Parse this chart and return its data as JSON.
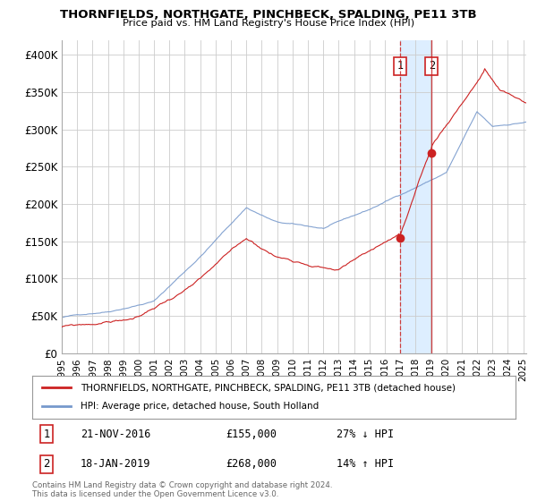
{
  "title": "THORNFIELDS, NORTHGATE, PINCHBECK, SPALDING, PE11 3TB",
  "subtitle": "Price paid vs. HM Land Registry's House Price Index (HPI)",
  "legend_line1": "THORNFIELDS, NORTHGATE, PINCHBECK, SPALDING, PE11 3TB (detached house)",
  "legend_line2": "HPI: Average price, detached house, South Holland",
  "annotation1_date": "21-NOV-2016",
  "annotation1_price": "£155,000",
  "annotation1_hpi": "27% ↓ HPI",
  "annotation1_year": 2017.0,
  "annotation1_value": 155000,
  "annotation2_date": "18-JAN-2019",
  "annotation2_price": "£268,000",
  "annotation2_hpi": "14% ↑ HPI",
  "annotation2_year": 2019.05,
  "annotation2_value": 268000,
  "footer": "Contains HM Land Registry data © Crown copyright and database right 2024.\nThis data is licensed under the Open Government Licence v3.0.",
  "price_color": "#cc2222",
  "hpi_color": "#7799cc",
  "span_color": "#ddeeff",
  "vline1_color": "#cc2222",
  "vline2_color": "#cc2222",
  "background_color": "#ffffff",
  "grid_color": "#cccccc",
  "ylim": [
    0,
    420000
  ],
  "xlim": [
    1995.0,
    2025.2
  ],
  "yticks": [
    0,
    50000,
    100000,
    150000,
    200000,
    250000,
    300000,
    350000,
    400000
  ],
  "ytick_labels": [
    "£0",
    "£50K",
    "£100K",
    "£150K",
    "£200K",
    "£250K",
    "£300K",
    "£350K",
    "£400K"
  ],
  "hpi_seed": 42,
  "price_seed": 99,
  "figwidth": 6.0,
  "figheight": 5.6,
  "dpi": 100
}
